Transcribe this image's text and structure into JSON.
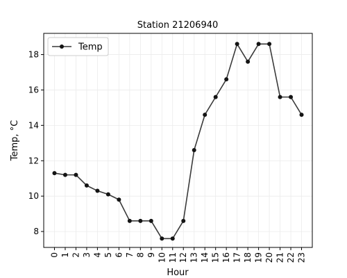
{
  "chart_data": {
    "type": "line",
    "title": "Station 21206940",
    "xlabel": "Hour",
    "ylabel": "Temp, °C",
    "x": [
      0,
      1,
      2,
      3,
      4,
      5,
      6,
      7,
      8,
      9,
      10,
      11,
      12,
      13,
      14,
      15,
      16,
      17,
      18,
      19,
      20,
      21,
      22,
      23
    ],
    "series": [
      {
        "name": "Temp",
        "values": [
          11.3,
          11.2,
          11.2,
          10.6,
          10.3,
          10.1,
          9.8,
          8.6,
          8.6,
          8.6,
          7.6,
          7.6,
          8.6,
          12.6,
          14.6,
          15.6,
          16.6,
          18.6,
          17.6,
          18.6,
          18.6,
          15.6,
          15.6,
          14.6
        ]
      }
    ],
    "xlim": [
      -1,
      24
    ],
    "ylim": [
      7.1,
      19.2
    ],
    "yticks": [
      8,
      10,
      12,
      14,
      16,
      18
    ],
    "grid": true,
    "legend_position": "top-left",
    "colors": {
      "line": "#3a3a3a",
      "marker": "#141414",
      "grid": "#ebebeb",
      "axes": "#000000"
    }
  }
}
